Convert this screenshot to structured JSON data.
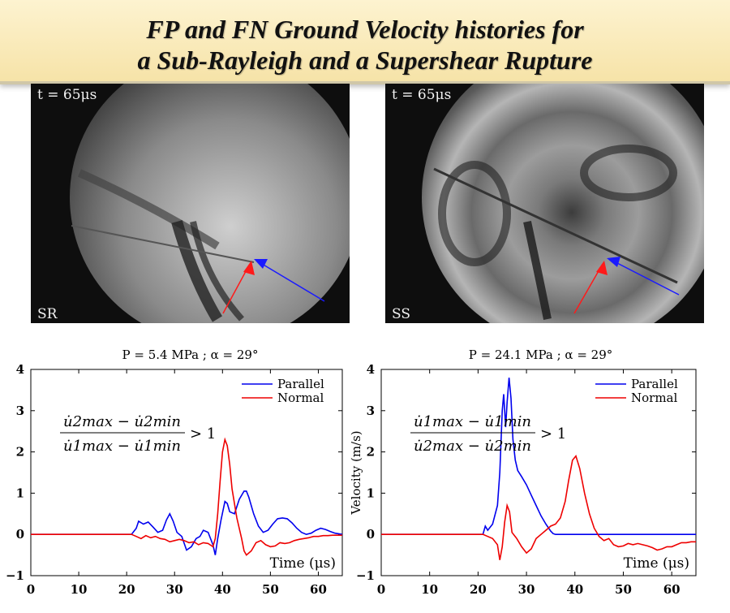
{
  "title": {
    "line1": "FP and FN Ground Velocity histories for",
    "line2": "a Sub-Rayleigh and a Supershear Rupture"
  },
  "photos": [
    {
      "time_label": "t = 65μs",
      "tag": "SR",
      "arrow_colors": {
        "normal": "#ff1a1a",
        "parallel": "#1a1aff"
      }
    },
    {
      "time_label": "t = 65μs",
      "tag": "SS",
      "arrow_colors": {
        "normal": "#ff1a1a",
        "parallel": "#1a1aff"
      }
    }
  ],
  "chart_data": [
    {
      "type": "line",
      "title": "P = 5.4 MPa ; α = 29°",
      "xlabel": "Time (μs)",
      "ylabel": "",
      "xlim": [
        0,
        65
      ],
      "ylim": [
        -1,
        4
      ],
      "xticks": [
        0,
        10,
        20,
        30,
        40,
        50,
        60
      ],
      "yticks": [
        -1,
        0,
        1,
        2,
        3,
        4
      ],
      "legend_position": "top-right",
      "annotation": {
        "numerator": "u̇2max − u̇2min",
        "denominator": "u̇1max − u̇1min",
        "relation": "> 1"
      },
      "series": [
        {
          "name": "Parallel",
          "color": "#0000ee",
          "x": [
            0,
            21,
            22,
            22.5,
            23.5,
            24.5,
            25.5,
            26.5,
            27.5,
            28.3,
            29,
            29.7,
            30.5,
            31.5,
            32.5,
            33.5,
            34.5,
            35.3,
            36,
            37,
            38,
            38.5,
            39,
            39.7,
            40.5,
            41,
            41.5,
            42.5,
            43.5,
            44.5,
            45,
            45.5,
            46.5,
            47.5,
            48.5,
            49.5,
            50.5,
            51.5,
            52.5,
            53.5,
            54.5,
            55.5,
            56.5,
            57.5,
            58.5,
            59.5,
            60.5,
            61.5,
            62.5,
            63.5,
            65
          ],
          "y": [
            0,
            0,
            0.15,
            0.32,
            0.25,
            0.3,
            0.18,
            0.05,
            0.1,
            0.35,
            0.5,
            0.32,
            0.05,
            -0.05,
            -0.38,
            -0.3,
            -0.1,
            -0.05,
            0.1,
            0.05,
            -0.25,
            -0.5,
            -0.1,
            0.35,
            0.8,
            0.75,
            0.55,
            0.5,
            0.85,
            1.05,
            1.05,
            0.9,
            0.5,
            0.2,
            0.05,
            0.1,
            0.25,
            0.38,
            0.4,
            0.38,
            0.28,
            0.15,
            0.05,
            0.0,
            0.03,
            0.1,
            0.15,
            0.12,
            0.07,
            0.03,
            0.0
          ]
        },
        {
          "name": "Normal",
          "color": "#ee0000",
          "x": [
            0,
            21,
            22,
            23,
            24,
            25,
            26,
            27,
            28,
            29,
            30,
            31,
            32,
            33,
            34,
            35,
            36,
            37,
            38,
            38.5,
            39,
            39.5,
            40,
            40.5,
            41,
            41.5,
            42,
            43,
            44,
            44.5,
            45,
            46,
            47,
            48,
            49,
            50,
            51,
            52,
            53,
            54,
            55,
            56,
            57,
            58,
            59,
            60,
            61,
            62,
            63,
            64,
            65
          ],
          "y": [
            0,
            0,
            -0.05,
            -0.1,
            -0.03,
            -0.08,
            -0.05,
            -0.1,
            -0.12,
            -0.18,
            -0.15,
            -0.12,
            -0.15,
            -0.2,
            -0.18,
            -0.25,
            -0.2,
            -0.22,
            -0.3,
            -0.1,
            0.5,
            1.3,
            2.0,
            2.3,
            2.15,
            1.7,
            1.1,
            0.4,
            -0.1,
            -0.4,
            -0.5,
            -0.4,
            -0.2,
            -0.15,
            -0.25,
            -0.3,
            -0.28,
            -0.2,
            -0.22,
            -0.2,
            -0.15,
            -0.12,
            -0.1,
            -0.08,
            -0.05,
            -0.05,
            -0.03,
            -0.03,
            -0.02,
            -0.02,
            -0.02
          ]
        }
      ]
    },
    {
      "type": "line",
      "title": "P = 24.1 MPa ; α = 29°",
      "xlabel": "Time (μs)",
      "ylabel": "Velocity (m/s)",
      "xlim": [
        0,
        65
      ],
      "ylim": [
        -1,
        4
      ],
      "xticks": [
        0,
        10,
        20,
        30,
        40,
        50,
        60
      ],
      "yticks": [
        -1,
        0,
        1,
        2,
        3,
        4
      ],
      "legend_position": "top-right",
      "annotation": {
        "numerator": "u̇1max − u̇1min",
        "denominator": "u̇2max − u̇2min",
        "relation": "> 1"
      },
      "series": [
        {
          "name": "Parallel",
          "color": "#0000ee",
          "x": [
            0,
            21,
            21.5,
            22,
            23,
            24,
            24.5,
            25,
            25.3,
            25.7,
            26,
            26.4,
            26.8,
            27.2,
            27.7,
            28.2,
            29,
            30,
            31,
            32,
            33,
            34,
            35,
            35.5,
            36,
            40,
            50,
            60,
            65
          ],
          "y": [
            0,
            0,
            0.2,
            0.1,
            0.25,
            0.7,
            1.5,
            3.0,
            3.4,
            2.6,
            3.2,
            3.8,
            3.3,
            2.3,
            1.8,
            1.55,
            1.4,
            1.2,
            0.95,
            0.7,
            0.45,
            0.25,
            0.08,
            0.02,
            0,
            0,
            0,
            0,
            0
          ]
        },
        {
          "name": "Normal",
          "color": "#ee0000",
          "x": [
            0,
            21,
            22,
            23,
            24,
            24.5,
            25,
            25.5,
            26,
            26.5,
            27,
            28,
            29,
            30,
            31,
            32,
            33,
            34,
            35,
            36,
            37,
            38,
            38.7,
            39.5,
            40.2,
            41,
            42,
            43,
            44,
            45,
            46,
            47,
            48,
            49,
            50,
            51,
            52,
            53,
            54,
            55,
            56,
            57,
            58,
            59,
            60,
            61,
            62,
            63,
            64,
            65
          ],
          "y": [
            0,
            0,
            -0.05,
            -0.1,
            -0.25,
            -0.62,
            -0.3,
            0.3,
            0.7,
            0.55,
            0.05,
            -0.1,
            -0.3,
            -0.45,
            -0.35,
            -0.1,
            0.0,
            0.1,
            0.2,
            0.25,
            0.4,
            0.8,
            1.3,
            1.8,
            1.9,
            1.6,
            1.0,
            0.5,
            0.15,
            -0.05,
            -0.15,
            -0.1,
            -0.25,
            -0.3,
            -0.28,
            -0.22,
            -0.25,
            -0.22,
            -0.25,
            -0.28,
            -0.32,
            -0.38,
            -0.35,
            -0.3,
            -0.3,
            -0.25,
            -0.2,
            -0.2,
            -0.18,
            -0.18
          ]
        }
      ]
    }
  ]
}
